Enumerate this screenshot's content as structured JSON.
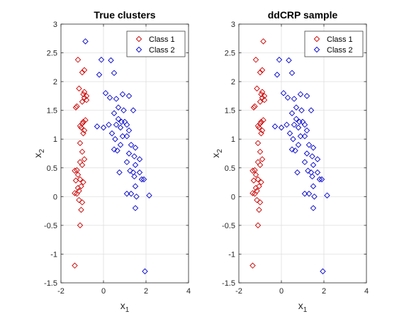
{
  "chart_data": [
    {
      "type": "scatter",
      "title": "True clusters",
      "xlabel": "x",
      "xlabel_sub": "1",
      "ylabel": "x",
      "ylabel_sub": "2",
      "xlim": [
        -2,
        4
      ],
      "ylim": [
        -1.5,
        3
      ],
      "xticks": [
        -2,
        0,
        2,
        4
      ],
      "yticks": [
        -1.5,
        -1,
        -0.5,
        0,
        0.5,
        1,
        1.5,
        2,
        2.5,
        3
      ],
      "xtick_labels": [
        "-2",
        "0",
        "2",
        "4"
      ],
      "ytick_labels": [
        "-1.5",
        "-1",
        "-0.5",
        "0",
        "0.5",
        "1",
        "1.5",
        "2",
        "2.5",
        "3"
      ],
      "grid": true,
      "legend": "top-right",
      "series": [
        {
          "name": "Class 1",
          "color": "#cc0000",
          "marker": "diamond",
          "points": [
            [
              -1.2,
              2.38
            ],
            [
              -0.9,
              2.2
            ],
            [
              -1.0,
              2.16
            ],
            [
              -0.8,
              1.75
            ],
            [
              -0.95,
              1.78
            ],
            [
              -0.9,
              1.82
            ],
            [
              -1.15,
              1.88
            ],
            [
              -0.9,
              1.72
            ],
            [
              -1.0,
              1.65
            ],
            [
              -0.8,
              1.68
            ],
            [
              -1.3,
              1.55
            ],
            [
              -1.25,
              1.57
            ],
            [
              -0.95,
              1.3
            ],
            [
              -0.85,
              1.33
            ],
            [
              -1.0,
              1.27
            ],
            [
              -1.1,
              1.23
            ],
            [
              -0.9,
              1.15
            ],
            [
              -0.95,
              1.1
            ],
            [
              -1.05,
              1.2
            ],
            [
              -1.1,
              0.93
            ],
            [
              -1.0,
              0.78
            ],
            [
              -0.9,
              0.65
            ],
            [
              -1.0,
              0.55
            ],
            [
              -1.1,
              0.6
            ],
            [
              -1.35,
              0.45
            ],
            [
              -1.25,
              0.46
            ],
            [
              -1.2,
              0.38
            ],
            [
              -1.1,
              0.3
            ],
            [
              -0.95,
              0.25
            ],
            [
              -1.05,
              0.18
            ],
            [
              -1.3,
              0.28
            ],
            [
              -1.2,
              0.15
            ],
            [
              -1.15,
              0.1
            ],
            [
              -1.35,
              0.06
            ],
            [
              -1.25,
              0.05
            ],
            [
              -1.15,
              -0.06
            ],
            [
              -1.0,
              -0.1
            ],
            [
              -1.05,
              -0.23
            ],
            [
              -1.1,
              -0.5
            ],
            [
              -1.35,
              -1.2
            ]
          ]
        },
        {
          "name": "Class 2",
          "color": "#0000cc",
          "marker": "diamond",
          "points": [
            [
              -0.85,
              2.7
            ],
            [
              -0.1,
              2.38
            ],
            [
              0.35,
              2.37
            ],
            [
              0.5,
              2.15
            ],
            [
              -0.2,
              2.12
            ],
            [
              0.1,
              1.8
            ],
            [
              0.3,
              1.72
            ],
            [
              0.6,
              1.7
            ],
            [
              0.9,
              1.78
            ],
            [
              1.2,
              1.75
            ],
            [
              0.7,
              1.55
            ],
            [
              0.5,
              1.45
            ],
            [
              0.95,
              1.5
            ],
            [
              1.4,
              1.5
            ],
            [
              0.85,
              1.3
            ],
            [
              0.7,
              1.35
            ],
            [
              1.0,
              1.3
            ],
            [
              0.8,
              1.2
            ],
            [
              0.6,
              1.25
            ],
            [
              1.1,
              1.25
            ],
            [
              1.2,
              1.15
            ],
            [
              0.25,
              1.25
            ],
            [
              -0.3,
              1.22
            ],
            [
              0.0,
              1.2
            ],
            [
              0.4,
              1.1
            ],
            [
              0.55,
              1.0
            ],
            [
              0.9,
              1.05
            ],
            [
              1.1,
              1.05
            ],
            [
              0.8,
              0.9
            ],
            [
              0.5,
              0.82
            ],
            [
              0.65,
              0.8
            ],
            [
              1.3,
              0.9
            ],
            [
              1.5,
              0.85
            ],
            [
              1.2,
              0.75
            ],
            [
              1.45,
              0.7
            ],
            [
              1.7,
              0.65
            ],
            [
              1.5,
              0.55
            ],
            [
              1.25,
              0.45
            ],
            [
              1.4,
              0.42
            ],
            [
              1.7,
              0.42
            ],
            [
              0.75,
              0.42
            ],
            [
              1.1,
              0.6
            ],
            [
              1.45,
              0.35
            ],
            [
              1.8,
              0.3
            ],
            [
              1.9,
              0.3
            ],
            [
              1.5,
              0.18
            ],
            [
              1.1,
              0.05
            ],
            [
              1.3,
              0.05
            ],
            [
              1.55,
              0.0
            ],
            [
              2.15,
              0.02
            ],
            [
              1.5,
              -0.2
            ],
            [
              1.95,
              -1.3
            ]
          ]
        }
      ]
    },
    {
      "type": "scatter",
      "title": "ddCRP sample",
      "xlabel": "x",
      "xlabel_sub": "1",
      "ylabel": "x",
      "ylabel_sub": "2",
      "xlim": [
        -2,
        4
      ],
      "ylim": [
        -1.5,
        3
      ],
      "xticks": [
        -2,
        0,
        2,
        4
      ],
      "yticks": [
        -1.5,
        -1,
        -0.5,
        0,
        0.5,
        1,
        1.5,
        2,
        2.5,
        3
      ],
      "xtick_labels": [
        "-2",
        "0",
        "2",
        "4"
      ],
      "ytick_labels": [
        "-1.5",
        "-1",
        "-0.5",
        "0",
        "0.5",
        "1",
        "1.5",
        "2",
        "2.5",
        "3"
      ],
      "grid": true,
      "legend": "top-right",
      "series": [
        {
          "name": "Class 1",
          "color": "#cc0000",
          "marker": "diamond",
          "points": [
            [
              -1.2,
              2.38
            ],
            [
              -0.85,
              2.7
            ],
            [
              -0.9,
              2.2
            ],
            [
              -1.0,
              2.16
            ],
            [
              -0.8,
              1.75
            ],
            [
              -0.95,
              1.78
            ],
            [
              -0.9,
              1.82
            ],
            [
              -1.15,
              1.88
            ],
            [
              -0.9,
              1.72
            ],
            [
              -1.0,
              1.65
            ],
            [
              -0.8,
              1.68
            ],
            [
              -1.3,
              1.55
            ],
            [
              -1.25,
              1.57
            ],
            [
              -0.95,
              1.3
            ],
            [
              -0.85,
              1.33
            ],
            [
              -1.0,
              1.27
            ],
            [
              -1.1,
              1.23
            ],
            [
              -0.9,
              1.15
            ],
            [
              -0.95,
              1.1
            ],
            [
              -1.05,
              1.2
            ],
            [
              -1.1,
              0.93
            ],
            [
              -1.0,
              0.78
            ],
            [
              -0.9,
              0.65
            ],
            [
              -1.0,
              0.55
            ],
            [
              -1.1,
              0.6
            ],
            [
              -1.35,
              0.45
            ],
            [
              -1.25,
              0.46
            ],
            [
              -1.2,
              0.38
            ],
            [
              -1.1,
              0.3
            ],
            [
              -0.95,
              0.25
            ],
            [
              -1.05,
              0.18
            ],
            [
              -1.3,
              0.28
            ],
            [
              -1.2,
              0.15
            ],
            [
              -1.15,
              0.1
            ],
            [
              -1.35,
              0.06
            ],
            [
              -1.25,
              0.05
            ],
            [
              -1.15,
              -0.06
            ],
            [
              -1.0,
              -0.1
            ],
            [
              -1.05,
              -0.23
            ],
            [
              -1.1,
              -0.5
            ],
            [
              -1.35,
              -1.2
            ]
          ]
        },
        {
          "name": "Class 2",
          "color": "#0000cc",
          "marker": "diamond",
          "points": [
            [
              -0.1,
              2.38
            ],
            [
              0.35,
              2.37
            ],
            [
              0.5,
              2.15
            ],
            [
              -0.2,
              2.12
            ],
            [
              0.1,
              1.8
            ],
            [
              0.3,
              1.72
            ],
            [
              0.6,
              1.7
            ],
            [
              0.9,
              1.78
            ],
            [
              1.2,
              1.75
            ],
            [
              0.7,
              1.55
            ],
            [
              0.5,
              1.45
            ],
            [
              0.95,
              1.5
            ],
            [
              1.4,
              1.5
            ],
            [
              0.85,
              1.3
            ],
            [
              0.7,
              1.35
            ],
            [
              1.0,
              1.3
            ],
            [
              0.8,
              1.2
            ],
            [
              0.6,
              1.25
            ],
            [
              1.1,
              1.25
            ],
            [
              1.2,
              1.15
            ],
            [
              0.25,
              1.25
            ],
            [
              -0.3,
              1.22
            ],
            [
              0.0,
              1.2
            ],
            [
              0.4,
              1.1
            ],
            [
              0.55,
              1.0
            ],
            [
              0.9,
              1.05
            ],
            [
              1.1,
              1.05
            ],
            [
              0.8,
              0.9
            ],
            [
              0.5,
              0.82
            ],
            [
              0.65,
              0.8
            ],
            [
              1.3,
              0.9
            ],
            [
              1.5,
              0.85
            ],
            [
              1.2,
              0.75
            ],
            [
              1.45,
              0.7
            ],
            [
              1.7,
              0.65
            ],
            [
              1.5,
              0.55
            ],
            [
              1.25,
              0.45
            ],
            [
              1.4,
              0.42
            ],
            [
              1.7,
              0.42
            ],
            [
              0.75,
              0.42
            ],
            [
              1.1,
              0.6
            ],
            [
              1.45,
              0.35
            ],
            [
              1.8,
              0.3
            ],
            [
              1.9,
              0.3
            ],
            [
              1.5,
              0.18
            ],
            [
              1.1,
              0.05
            ],
            [
              1.3,
              0.05
            ],
            [
              1.55,
              0.0
            ],
            [
              2.15,
              0.02
            ],
            [
              1.5,
              -0.2
            ],
            [
              1.95,
              -1.3
            ]
          ]
        }
      ]
    }
  ]
}
